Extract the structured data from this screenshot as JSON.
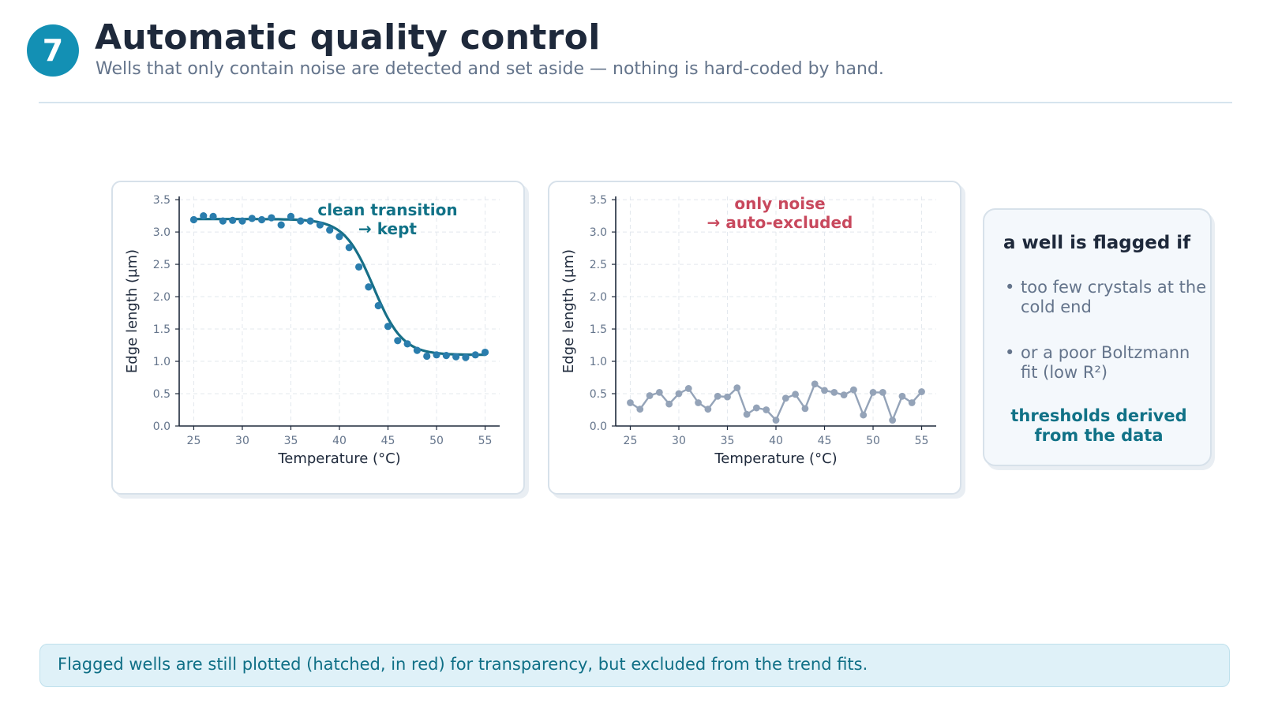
{
  "header": {
    "step_number": "7",
    "title": "Automatic quality control",
    "subtitle": "Wells that only contain noise are detected and set aside — nothing is hard-coded by hand."
  },
  "chart_data": [
    {
      "type": "scatter",
      "annotation": [
        "clean transition",
        "→ kept"
      ],
      "annotation_color": "#117287",
      "xlabel": "Temperature (°C)",
      "ylabel": "Edge length (µm)",
      "xlim": [
        23.5,
        56.5
      ],
      "ylim": [
        0,
        3.55
      ],
      "xticks": [
        25,
        30,
        35,
        40,
        45,
        50,
        55
      ],
      "yticks": [
        0.0,
        0.5,
        1.0,
        1.5,
        2.0,
        2.5,
        3.0,
        3.5
      ],
      "grid": true,
      "point_color": "#2a7dad",
      "fit_color": "#176f87",
      "points": {
        "x": [
          25,
          26,
          27,
          28,
          29,
          30,
          31,
          32,
          33,
          34,
          35,
          36,
          37,
          38,
          39,
          40,
          41,
          42,
          43,
          44,
          45,
          46,
          47,
          48,
          49,
          50,
          51,
          52,
          53,
          54,
          55
        ],
        "y": [
          3.19,
          3.25,
          3.24,
          3.17,
          3.18,
          3.17,
          3.21,
          3.19,
          3.22,
          3.11,
          3.24,
          3.17,
          3.17,
          3.11,
          3.03,
          2.93,
          2.76,
          2.46,
          2.15,
          1.86,
          1.54,
          1.32,
          1.27,
          1.17,
          1.08,
          1.1,
          1.09,
          1.07,
          1.06,
          1.1,
          1.14
        ]
      },
      "fit": {
        "model": "boltzmann",
        "top": 3.2,
        "bottom": 1.1,
        "x50": 43.5,
        "slope": 1.5
      }
    },
    {
      "type": "line",
      "annotation": [
        "only noise",
        "→ auto-excluded"
      ],
      "annotation_color": "#c8485d",
      "xlabel": "Temperature (°C)",
      "ylabel": "Edge length (µm)",
      "xlim": [
        23.5,
        56.5
      ],
      "ylim": [
        0,
        3.55
      ],
      "xticks": [
        25,
        30,
        35,
        40,
        45,
        50,
        55
      ],
      "yticks": [
        0.0,
        0.5,
        1.0,
        1.5,
        2.0,
        2.5,
        3.0,
        3.5
      ],
      "grid": true,
      "line_color": "#94a3b8",
      "x": [
        25,
        26,
        27,
        28,
        29,
        30,
        31,
        32,
        33,
        34,
        35,
        36,
        37,
        38,
        39,
        40,
        41,
        42,
        43,
        44,
        45,
        46,
        47,
        48,
        49,
        50,
        51,
        52,
        53,
        54,
        55
      ],
      "y": [
        0.36,
        0.26,
        0.47,
        0.52,
        0.34,
        0.5,
        0.58,
        0.36,
        0.26,
        0.46,
        0.45,
        0.59,
        0.18,
        0.28,
        0.25,
        0.09,
        0.43,
        0.49,
        0.27,
        0.65,
        0.55,
        0.52,
        0.48,
        0.56,
        0.17,
        0.52,
        0.52,
        0.09,
        0.46,
        0.36,
        0.53
      ]
    }
  ],
  "sidebar": {
    "heading": "a well is flagged if",
    "items": [
      "too few crystals at the cold end",
      "or a poor Boltzmann fit (low R²)"
    ],
    "footnote": "thresholds derived from the data"
  },
  "footer": {
    "text": "Flagged wells are still plotted (hatched, in red) for transparency, but excluded from the trend fits."
  }
}
